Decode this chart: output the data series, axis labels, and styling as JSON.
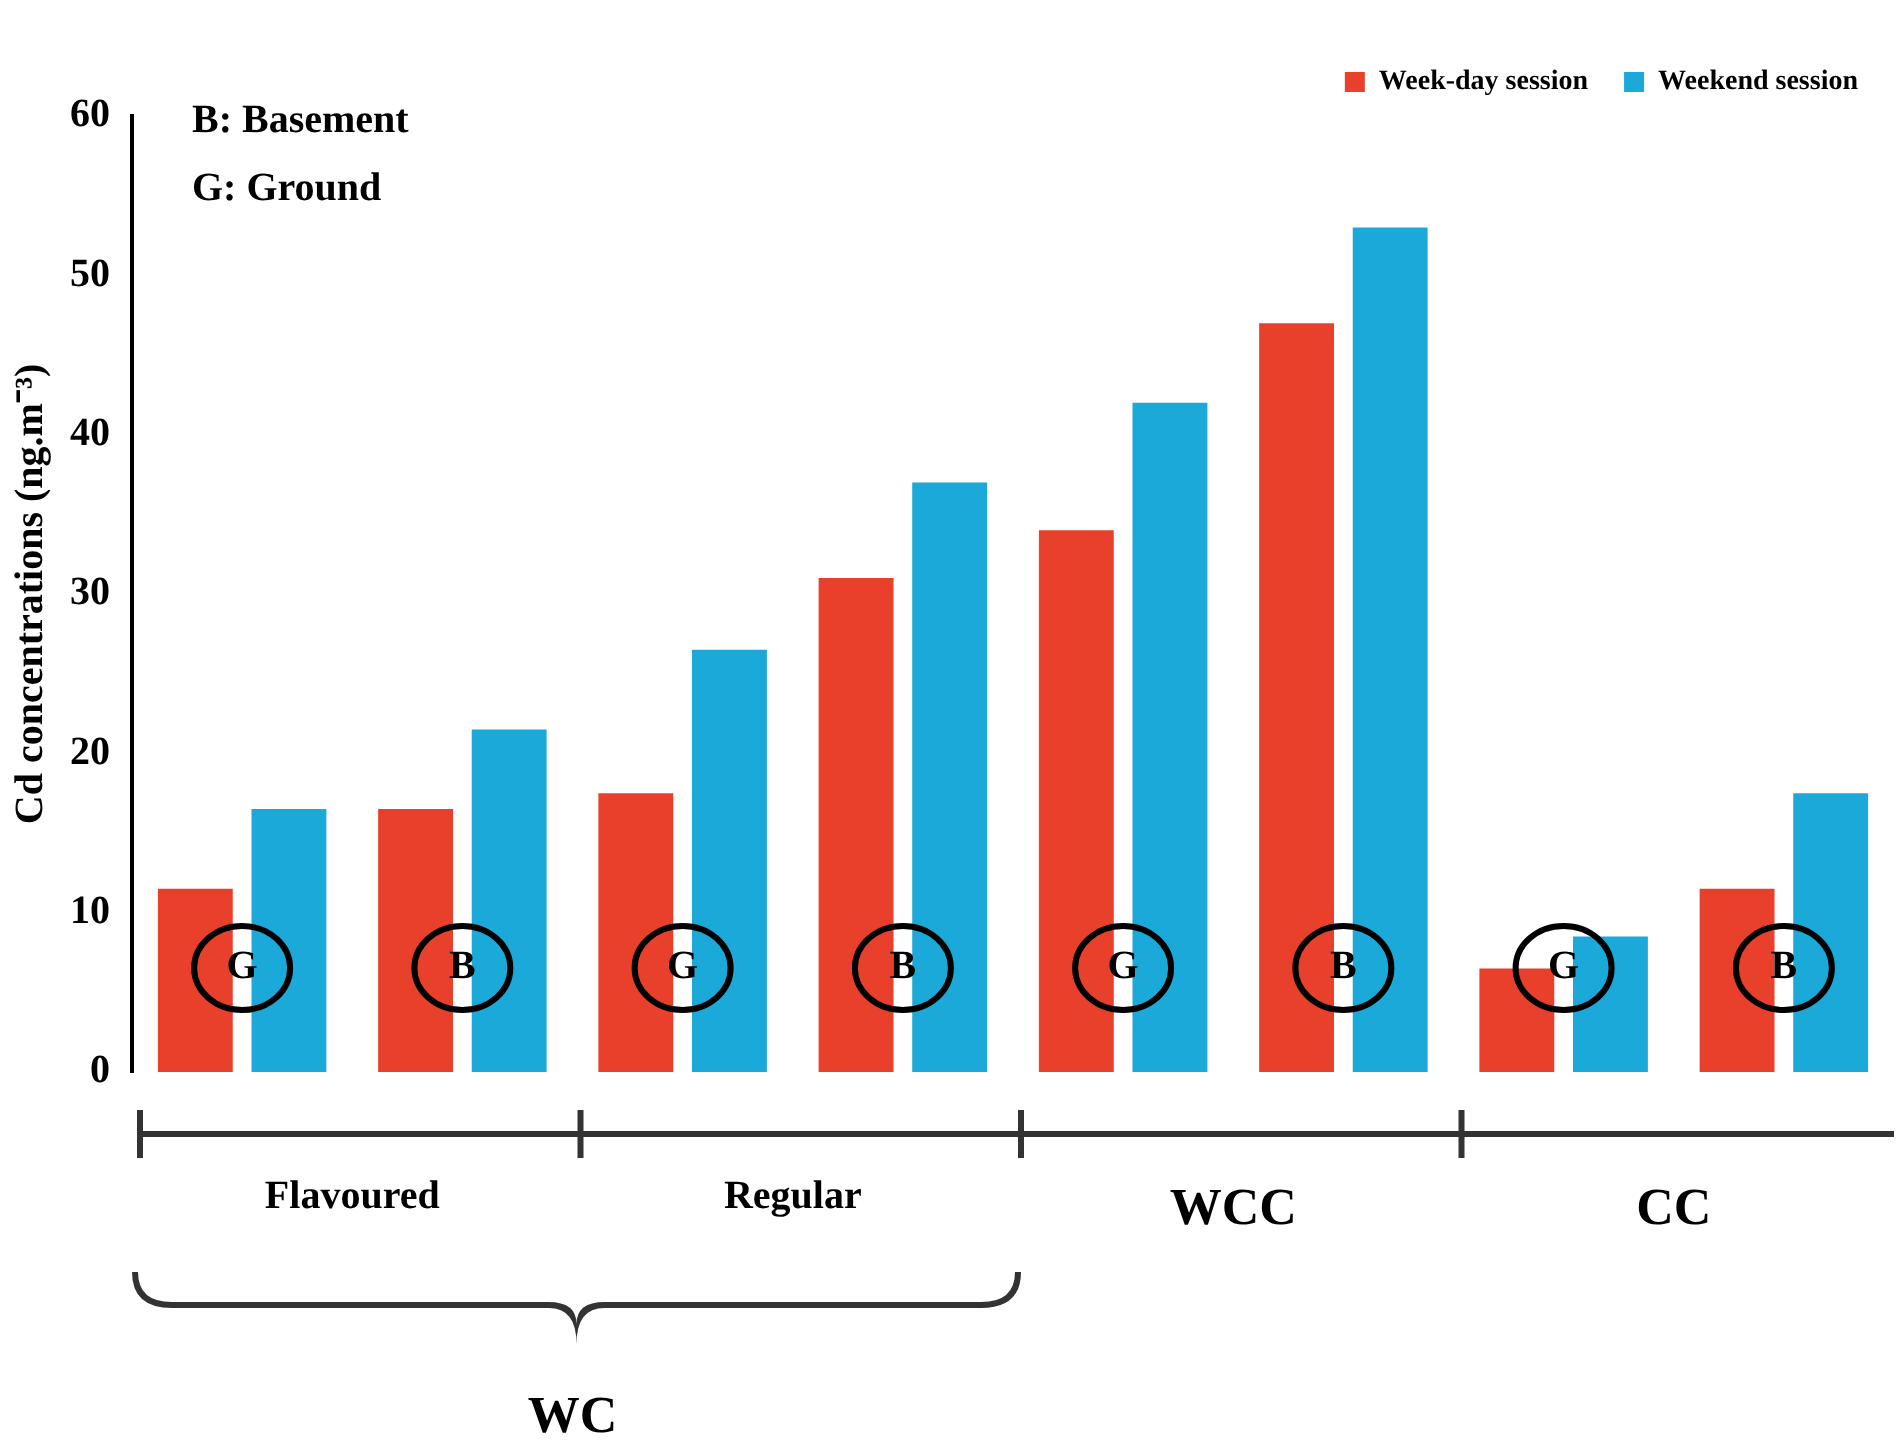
{
  "chart_data": {
    "type": "bar",
    "ylabel": "Cd concentrations (ng.m⁻³)",
    "categories": [
      "G",
      "B",
      "G",
      "B",
      "G",
      "B",
      "G",
      "B"
    ],
    "series": [
      {
        "name": "Week-day session",
        "color": "#e8402a",
        "values": [
          11.5,
          16.5,
          17.5,
          31,
          34,
          47,
          6.5,
          11.5
        ]
      },
      {
        "name": "Weekend session",
        "color": "#1aa9d9",
        "values": [
          16.5,
          21.5,
          26.5,
          37,
          42,
          53,
          8.5,
          17.5
        ]
      }
    ],
    "ylim": [
      0,
      60
    ],
    "yticks": [
      0,
      10,
      20,
      30,
      40,
      50,
      60
    ],
    "grid": false,
    "legend": "top right",
    "annotations": [
      "B: Basement",
      "G: Ground",
      "Flavoured",
      "Regular",
      "WCC",
      "CC",
      "WC"
    ]
  }
}
